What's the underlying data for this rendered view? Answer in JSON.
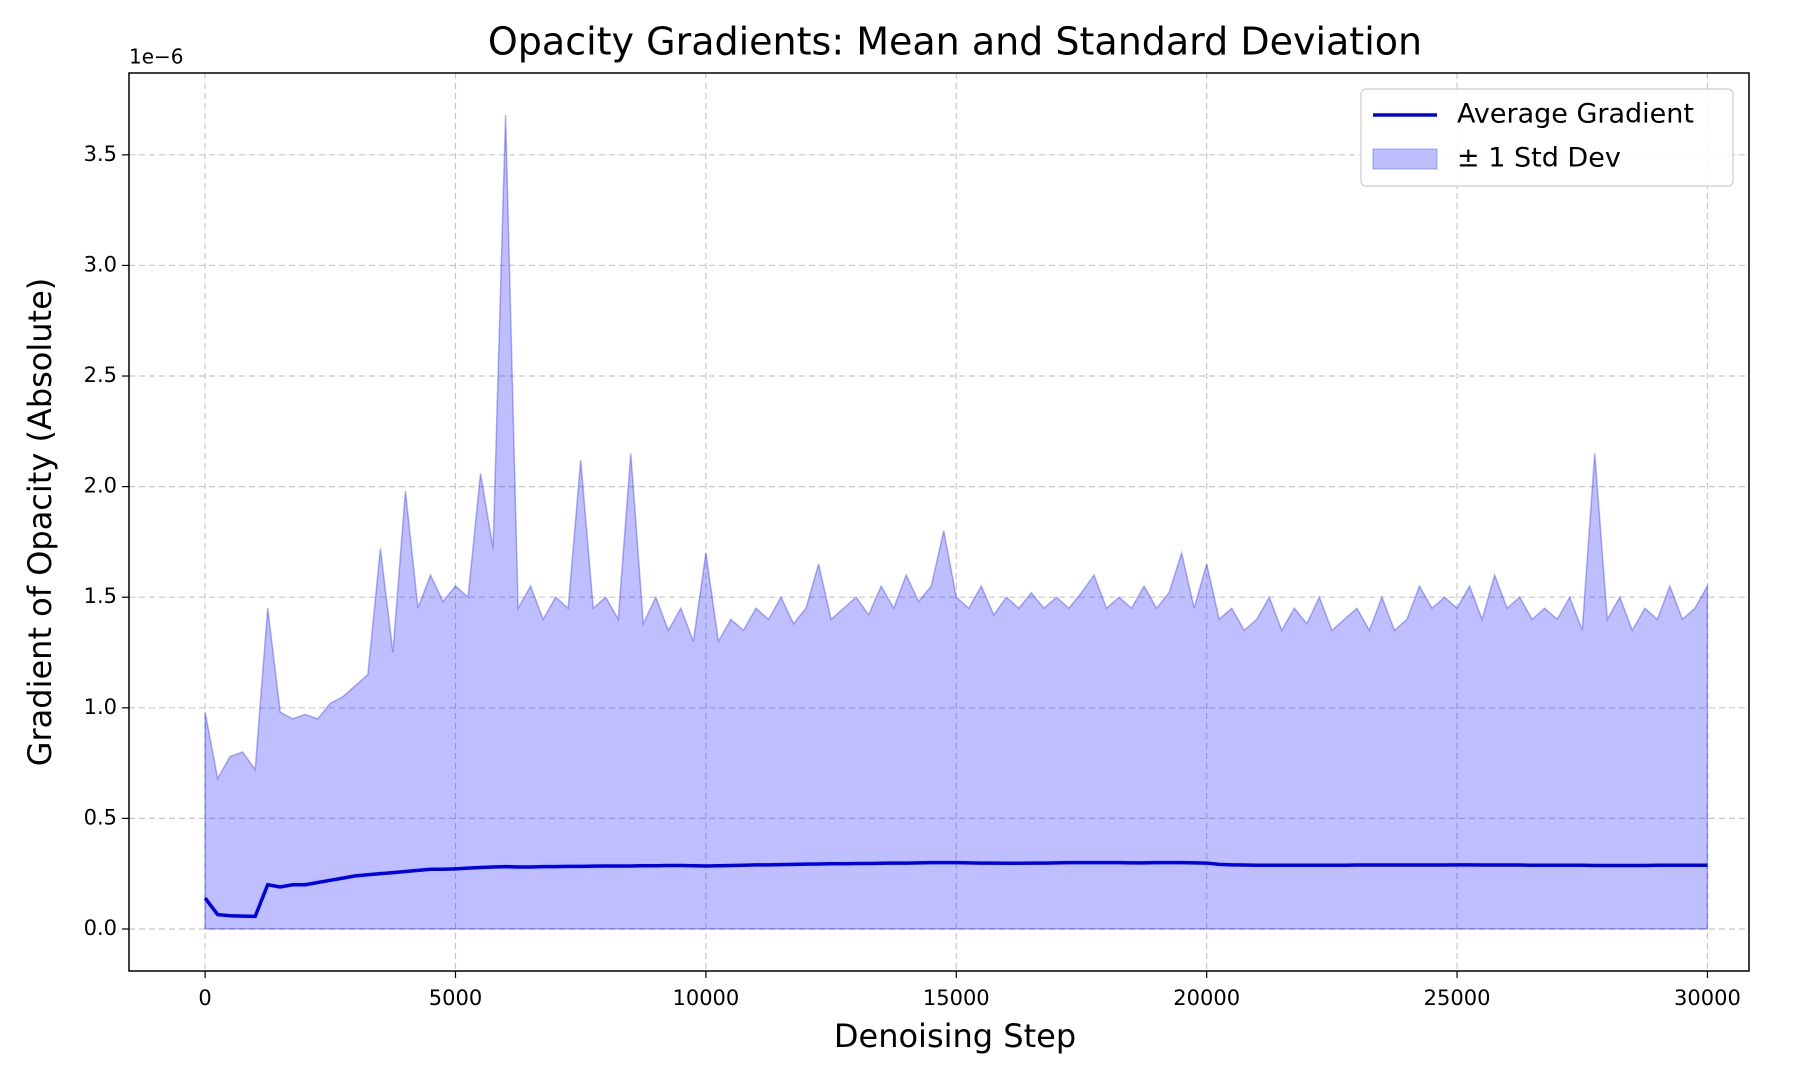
{
  "chart_data": {
    "type": "line",
    "title": "Opacity Gradients: Mean and Standard Deviation",
    "x_label": "Denoising Step",
    "y_label": "Gradient of Opacity (Absolute)",
    "y_offset_label": "1e−6",
    "x": [
      0,
      250,
      500,
      750,
      1000,
      1250,
      1500,
      1750,
      2000,
      2250,
      2500,
      2750,
      3000,
      3250,
      3500,
      3750,
      4000,
      4250,
      4500,
      4750,
      5000,
      5250,
      5500,
      5750,
      6000,
      6250,
      6500,
      6750,
      7000,
      7250,
      7500,
      7750,
      8000,
      8250,
      8500,
      8750,
      9000,
      9250,
      9500,
      9750,
      10000,
      10250,
      10500,
      10750,
      11000,
      11250,
      11500,
      11750,
      12000,
      12250,
      12500,
      12750,
      13000,
      13250,
      13500,
      13750,
      14000,
      14250,
      14500,
      14750,
      15000,
      15250,
      15500,
      15750,
      16000,
      16250,
      16500,
      16750,
      17000,
      17250,
      17500,
      17750,
      18000,
      18250,
      18500,
      18750,
      19000,
      19250,
      19500,
      19750,
      20000,
      20250,
      20500,
      20750,
      21000,
      21250,
      21500,
      21750,
      22000,
      22250,
      22500,
      22750,
      23000,
      23250,
      23500,
      23750,
      24000,
      24250,
      24500,
      24750,
      25000,
      25250,
      25500,
      25750,
      26000,
      26250,
      26500,
      26750,
      27000,
      27250,
      27500,
      27750,
      28000,
      28250,
      28500,
      28750,
      29000,
      29250,
      29500,
      29750,
      30000
    ],
    "series": [
      {
        "name": "Average Gradient",
        "color": "#0000e6",
        "values": [
          0.14,
          0.065,
          0.06,
          0.058,
          0.057,
          0.2,
          0.19,
          0.2,
          0.2,
          0.21,
          0.22,
          0.23,
          0.24,
          0.245,
          0.25,
          0.255,
          0.26,
          0.265,
          0.27,
          0.27,
          0.272,
          0.275,
          0.278,
          0.28,
          0.282,
          0.28,
          0.28,
          0.282,
          0.282,
          0.283,
          0.283,
          0.284,
          0.285,
          0.285,
          0.285,
          0.286,
          0.286,
          0.287,
          0.287,
          0.286,
          0.285,
          0.286,
          0.287,
          0.288,
          0.29,
          0.29,
          0.291,
          0.292,
          0.293,
          0.294,
          0.295,
          0.295,
          0.296,
          0.296,
          0.297,
          0.298,
          0.298,
          0.299,
          0.3,
          0.3,
          0.3,
          0.299,
          0.298,
          0.298,
          0.297,
          0.297,
          0.298,
          0.298,
          0.299,
          0.3,
          0.3,
          0.3,
          0.3,
          0.3,
          0.299,
          0.299,
          0.3,
          0.3,
          0.3,
          0.299,
          0.298,
          0.292,
          0.29,
          0.289,
          0.288,
          0.288,
          0.288,
          0.288,
          0.288,
          0.288,
          0.288,
          0.288,
          0.289,
          0.289,
          0.289,
          0.289,
          0.289,
          0.289,
          0.289,
          0.289,
          0.29,
          0.29,
          0.289,
          0.289,
          0.289,
          0.289,
          0.288,
          0.288,
          0.288,
          0.288,
          0.288,
          0.287,
          0.287,
          0.287,
          0.287,
          0.287,
          0.288,
          0.288,
          0.288,
          0.288,
          0.288
        ]
      },
      {
        "name": "± 1 Std Dev",
        "color": "#0000ff",
        "values": [
          0.98,
          0.68,
          0.78,
          0.8,
          0.72,
          1.45,
          0.98,
          0.95,
          0.97,
          0.95,
          1.02,
          1.05,
          1.1,
          1.15,
          1.72,
          1.25,
          1.98,
          1.45,
          1.6,
          1.48,
          1.55,
          1.5,
          2.06,
          1.72,
          3.68,
          1.45,
          1.55,
          1.4,
          1.5,
          1.45,
          2.12,
          1.45,
          1.5,
          1.4,
          2.15,
          1.38,
          1.5,
          1.35,
          1.45,
          1.3,
          1.7,
          1.3,
          1.4,
          1.35,
          1.45,
          1.4,
          1.5,
          1.38,
          1.45,
          1.65,
          1.4,
          1.45,
          1.5,
          1.42,
          1.55,
          1.45,
          1.6,
          1.48,
          1.55,
          1.8,
          1.5,
          1.45,
          1.55,
          1.42,
          1.5,
          1.45,
          1.52,
          1.45,
          1.5,
          1.45,
          1.52,
          1.6,
          1.45,
          1.5,
          1.45,
          1.55,
          1.45,
          1.52,
          1.7,
          1.45,
          1.65,
          1.4,
          1.45,
          1.35,
          1.4,
          1.5,
          1.35,
          1.45,
          1.38,
          1.5,
          1.35,
          1.4,
          1.45,
          1.35,
          1.5,
          1.35,
          1.4,
          1.55,
          1.45,
          1.5,
          1.45,
          1.55,
          1.4,
          1.6,
          1.45,
          1.5,
          1.4,
          1.45,
          1.4,
          1.5,
          1.35,
          2.15,
          1.4,
          1.5,
          1.35,
          1.45,
          1.4,
          1.55,
          1.4,
          1.45,
          1.55
        ],
        "lower": [
          0,
          0,
          0,
          0,
          0,
          0,
          0,
          0,
          0,
          0,
          0,
          0,
          0,
          0,
          0,
          0,
          0,
          0,
          0,
          0,
          0,
          0,
          0,
          0,
          0,
          0,
          0,
          0,
          0,
          0,
          0,
          0,
          0,
          0,
          0,
          0,
          0,
          0,
          0,
          0,
          0,
          0,
          0,
          0,
          0,
          0,
          0,
          0,
          0,
          0,
          0,
          0,
          0,
          0,
          0,
          0,
          0,
          0,
          0,
          0,
          0,
          0,
          0,
          0,
          0,
          0,
          0,
          0,
          0,
          0,
          0,
          0,
          0,
          0,
          0,
          0,
          0,
          0,
          0,
          0,
          0,
          0,
          0,
          0,
          0,
          0,
          0,
          0,
          0,
          0,
          0,
          0,
          0,
          0,
          0,
          0,
          0,
          0,
          0,
          0,
          0,
          0,
          0,
          0,
          0,
          0,
          0,
          0,
          0,
          0,
          0,
          0,
          0,
          0,
          0,
          0,
          0,
          0,
          0,
          0,
          0
        ]
      }
    ],
    "xlim": [
      -1520,
      30830
    ],
    "ylim": [
      -0.19,
      3.87
    ],
    "xticks": [
      0,
      5000,
      10000,
      15000,
      20000,
      25000,
      30000
    ],
    "yticks": [
      {
        "value": 0,
        "label": "0.0"
      },
      0.5,
      {
        "value": 1,
        "label": "1.0"
      },
      1.5,
      {
        "value": 2,
        "label": "2.0"
      },
      2.5,
      {
        "value": 3,
        "label": "3.0"
      },
      3.5
    ],
    "grid": true,
    "legend": "upper right"
  }
}
